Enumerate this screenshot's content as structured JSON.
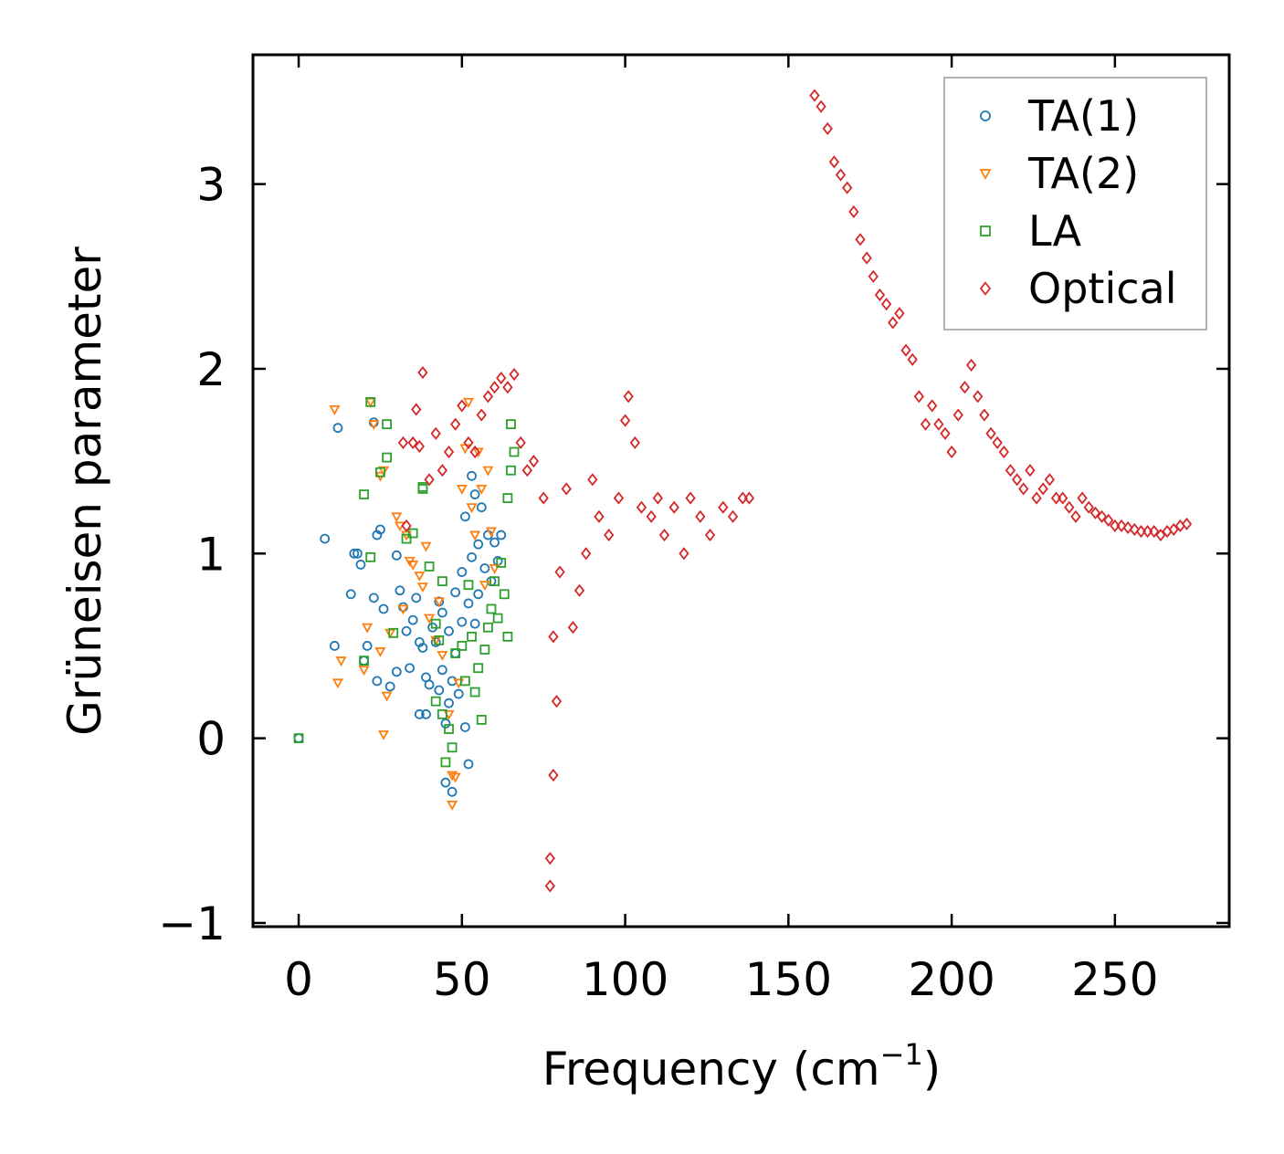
{
  "chart_data": {
    "type": "scatter",
    "title": "",
    "xlabel": "Frequency (cm",
    "xlabel_sup": "−1",
    "xlabel_end": ")",
    "ylabel": "Grüneisen parameter",
    "xlim": [
      -14,
      285
    ],
    "ylim": [
      -1.02,
      3.7
    ],
    "xticks": [
      0,
      50,
      100,
      150,
      200,
      250
    ],
    "xtick_labels": [
      "0",
      "50",
      "100",
      "150",
      "200",
      "250"
    ],
    "yticks": [
      -1,
      0,
      1,
      2,
      3
    ],
    "ytick_labels": [
      "−1",
      "0",
      "1",
      "2",
      "3"
    ],
    "grid": false,
    "legend_position": "top-right",
    "series": [
      {
        "name": "TA(1)",
        "marker": "circle",
        "color": "#1f77b4",
        "points": [
          [
            0,
            0
          ],
          [
            8,
            1.08
          ],
          [
            11,
            0.5
          ],
          [
            12,
            1.68
          ],
          [
            16,
            0.78
          ],
          [
            17,
            1.0
          ],
          [
            18,
            1.0
          ],
          [
            19,
            0.94
          ],
          [
            20,
            0.42
          ],
          [
            21,
            0.5
          ],
          [
            23,
            0.76
          ],
          [
            23,
            1.71
          ],
          [
            24,
            0.31
          ],
          [
            24,
            1.1
          ],
          [
            25,
            1.13
          ],
          [
            26,
            0.7
          ],
          [
            28,
            0.28
          ],
          [
            30,
            0.99
          ],
          [
            30,
            0.36
          ],
          [
            31,
            0.8
          ],
          [
            32,
            0.71
          ],
          [
            33,
            0.58
          ],
          [
            34,
            0.38
          ],
          [
            35,
            0.64
          ],
          [
            36,
            0.76
          ],
          [
            37,
            0.52
          ],
          [
            37,
            0.13
          ],
          [
            38,
            0.49
          ],
          [
            39,
            0.33
          ],
          [
            39,
            0.13
          ],
          [
            40,
            0.29
          ],
          [
            41,
            0.6
          ],
          [
            42,
            0.52
          ],
          [
            43,
            0.26
          ],
          [
            43,
            0.74
          ],
          [
            44,
            0.68
          ],
          [
            44,
            0.37
          ],
          [
            45,
            0.08
          ],
          [
            45,
            -0.24
          ],
          [
            46,
            0.19
          ],
          [
            46,
            0.58
          ],
          [
            47,
            -0.29
          ],
          [
            47,
            0.31
          ],
          [
            48,
            0.46
          ],
          [
            48,
            0.79
          ],
          [
            49,
            0.24
          ],
          [
            50,
            0.9
          ],
          [
            50,
            0.63
          ],
          [
            51,
            0.06
          ],
          [
            51,
            1.2
          ],
          [
            52,
            -0.14
          ],
          [
            52,
            0.73
          ],
          [
            53,
            1.42
          ],
          [
            53,
            0.98
          ],
          [
            54,
            0.62
          ],
          [
            54,
            1.32
          ],
          [
            55,
            1.05
          ],
          [
            55,
            0.78
          ],
          [
            56,
            1.25
          ],
          [
            57,
            0.92
          ],
          [
            58,
            1.1
          ],
          [
            59,
            0.85
          ],
          [
            60,
            1.06
          ],
          [
            61,
            0.96
          ],
          [
            62,
            1.1
          ]
        ]
      },
      {
        "name": "TA(2)",
        "marker": "triangle-down",
        "color": "#ff7f0e",
        "points": [
          [
            11,
            1.78
          ],
          [
            12,
            0.3
          ],
          [
            13,
            0.42
          ],
          [
            20,
            0.37
          ],
          [
            21,
            0.6
          ],
          [
            22,
            1.82
          ],
          [
            23,
            1.7
          ],
          [
            25,
            1.42
          ],
          [
            25,
            0.47
          ],
          [
            26,
            1.45
          ],
          [
            26,
            0.02
          ],
          [
            27,
            0.23
          ],
          [
            28,
            0.57
          ],
          [
            30,
            1.2
          ],
          [
            31,
            1.15
          ],
          [
            32,
            0.7
          ],
          [
            33,
            1.1
          ],
          [
            34,
            0.96
          ],
          [
            35,
            0.94
          ],
          [
            37,
            0.88
          ],
          [
            38,
            0.82
          ],
          [
            39,
            1.04
          ],
          [
            40,
            0.65
          ],
          [
            42,
            0.53
          ],
          [
            43,
            0.74
          ],
          [
            44,
            0.45
          ],
          [
            46,
            0.13
          ],
          [
            47,
            -0.2
          ],
          [
            47,
            -0.36
          ],
          [
            48,
            -0.21
          ],
          [
            49,
            0.3
          ],
          [
            50,
            1.35
          ],
          [
            51,
            1.57
          ],
          [
            52,
            1.82
          ],
          [
            53,
            1.25
          ],
          [
            54,
            1.1
          ],
          [
            55,
            1.55
          ],
          [
            56,
            1.35
          ],
          [
            57,
            0.83
          ],
          [
            58,
            1.45
          ],
          [
            59,
            1.12
          ],
          [
            60,
            0.92
          ]
        ]
      },
      {
        "name": "LA",
        "marker": "square",
        "color": "#2ca02c",
        "points": [
          [
            0,
            0
          ],
          [
            20,
            1.32
          ],
          [
            20,
            0.42
          ],
          [
            22,
            0.98
          ],
          [
            22,
            1.82
          ],
          [
            25,
            1.44
          ],
          [
            27,
            1.52
          ],
          [
            27,
            1.7
          ],
          [
            29,
            0.57
          ],
          [
            33,
            1.08
          ],
          [
            35,
            1.11
          ],
          [
            38,
            1.35
          ],
          [
            38,
            1.36
          ],
          [
            40,
            0.93
          ],
          [
            42,
            0.62
          ],
          [
            42,
            0.2
          ],
          [
            43,
            0.53
          ],
          [
            44,
            0.13
          ],
          [
            44,
            0.85
          ],
          [
            45,
            -0.13
          ],
          [
            46,
            0.05
          ],
          [
            47,
            -0.05
          ],
          [
            48,
            0.46
          ],
          [
            50,
            0.5
          ],
          [
            51,
            0.31
          ],
          [
            52,
            0.83
          ],
          [
            53,
            0.55
          ],
          [
            54,
            0.25
          ],
          [
            55,
            0.38
          ],
          [
            56,
            0.1
          ],
          [
            57,
            0.48
          ],
          [
            58,
            0.6
          ],
          [
            59,
            0.7
          ],
          [
            60,
            0.85
          ],
          [
            61,
            0.65
          ],
          [
            62,
            0.95
          ],
          [
            63,
            0.78
          ],
          [
            64,
            1.3
          ],
          [
            64,
            0.55
          ],
          [
            65,
            1.45
          ],
          [
            65,
            1.7
          ],
          [
            66,
            1.55
          ]
        ]
      },
      {
        "name": "Optical",
        "marker": "diamond",
        "color": "#d62728",
        "points": [
          [
            32,
            1.6
          ],
          [
            33,
            1.15
          ],
          [
            35,
            1.6
          ],
          [
            36,
            1.78
          ],
          [
            37,
            1.58
          ],
          [
            38,
            1.98
          ],
          [
            40,
            1.4
          ],
          [
            42,
            1.65
          ],
          [
            44,
            1.45
          ],
          [
            46,
            1.55
          ],
          [
            48,
            1.7
          ],
          [
            50,
            1.8
          ],
          [
            52,
            1.6
          ],
          [
            54,
            1.55
          ],
          [
            56,
            1.75
          ],
          [
            58,
            1.85
          ],
          [
            60,
            1.9
          ],
          [
            62,
            1.95
          ],
          [
            64,
            1.9
          ],
          [
            66,
            1.97
          ],
          [
            68,
            1.6
          ],
          [
            70,
            1.45
          ],
          [
            72,
            1.5
          ],
          [
            75,
            1.3
          ],
          [
            78,
            0.55
          ],
          [
            78,
            -0.2
          ],
          [
            77,
            -0.65
          ],
          [
            77,
            -0.8
          ],
          [
            79,
            0.2
          ],
          [
            80,
            0.9
          ],
          [
            82,
            1.35
          ],
          [
            84,
            0.6
          ],
          [
            86,
            0.8
          ],
          [
            88,
            1.0
          ],
          [
            90,
            1.4
          ],
          [
            92,
            1.2
          ],
          [
            95,
            1.1
          ],
          [
            98,
            1.3
          ],
          [
            100,
            1.72
          ],
          [
            101,
            1.85
          ],
          [
            103,
            1.6
          ],
          [
            105,
            1.25
          ],
          [
            108,
            1.2
          ],
          [
            110,
            1.3
          ],
          [
            112,
            1.1
          ],
          [
            115,
            1.25
          ],
          [
            118,
            1.0
          ],
          [
            120,
            1.3
          ],
          [
            123,
            1.2
          ],
          [
            126,
            1.1
          ],
          [
            130,
            1.25
          ],
          [
            133,
            1.2
          ],
          [
            136,
            1.3
          ],
          [
            138,
            1.3
          ],
          [
            158,
            3.48
          ],
          [
            160,
            3.42
          ],
          [
            162,
            3.3
          ],
          [
            164,
            3.12
          ],
          [
            166,
            3.05
          ],
          [
            168,
            2.98
          ],
          [
            170,
            2.85
          ],
          [
            172,
            2.7
          ],
          [
            174,
            2.6
          ],
          [
            176,
            2.5
          ],
          [
            178,
            2.4
          ],
          [
            180,
            2.35
          ],
          [
            182,
            2.25
          ],
          [
            184,
            2.3
          ],
          [
            186,
            2.1
          ],
          [
            188,
            2.05
          ],
          [
            190,
            1.85
          ],
          [
            192,
            1.7
          ],
          [
            194,
            1.8
          ],
          [
            196,
            1.7
          ],
          [
            198,
            1.65
          ],
          [
            200,
            1.55
          ],
          [
            202,
            1.75
          ],
          [
            204,
            1.9
          ],
          [
            206,
            2.02
          ],
          [
            208,
            1.85
          ],
          [
            210,
            1.75
          ],
          [
            212,
            1.65
          ],
          [
            214,
            1.6
          ],
          [
            216,
            1.55
          ],
          [
            218,
            1.45
          ],
          [
            220,
            1.4
          ],
          [
            222,
            1.35
          ],
          [
            224,
            1.45
          ],
          [
            226,
            1.3
          ],
          [
            228,
            1.35
          ],
          [
            230,
            1.4
          ],
          [
            232,
            1.3
          ],
          [
            234,
            1.3
          ],
          [
            236,
            1.25
          ],
          [
            238,
            1.2
          ],
          [
            240,
            1.3
          ],
          [
            242,
            1.25
          ],
          [
            244,
            1.22
          ],
          [
            246,
            1.2
          ],
          [
            248,
            1.18
          ],
          [
            250,
            1.15
          ],
          [
            252,
            1.15
          ],
          [
            254,
            1.14
          ],
          [
            256,
            1.13
          ],
          [
            258,
            1.12
          ],
          [
            260,
            1.12
          ],
          [
            262,
            1.12
          ],
          [
            264,
            1.1
          ],
          [
            266,
            1.12
          ],
          [
            268,
            1.13
          ],
          [
            270,
            1.15
          ],
          [
            272,
            1.16
          ]
        ]
      }
    ]
  }
}
